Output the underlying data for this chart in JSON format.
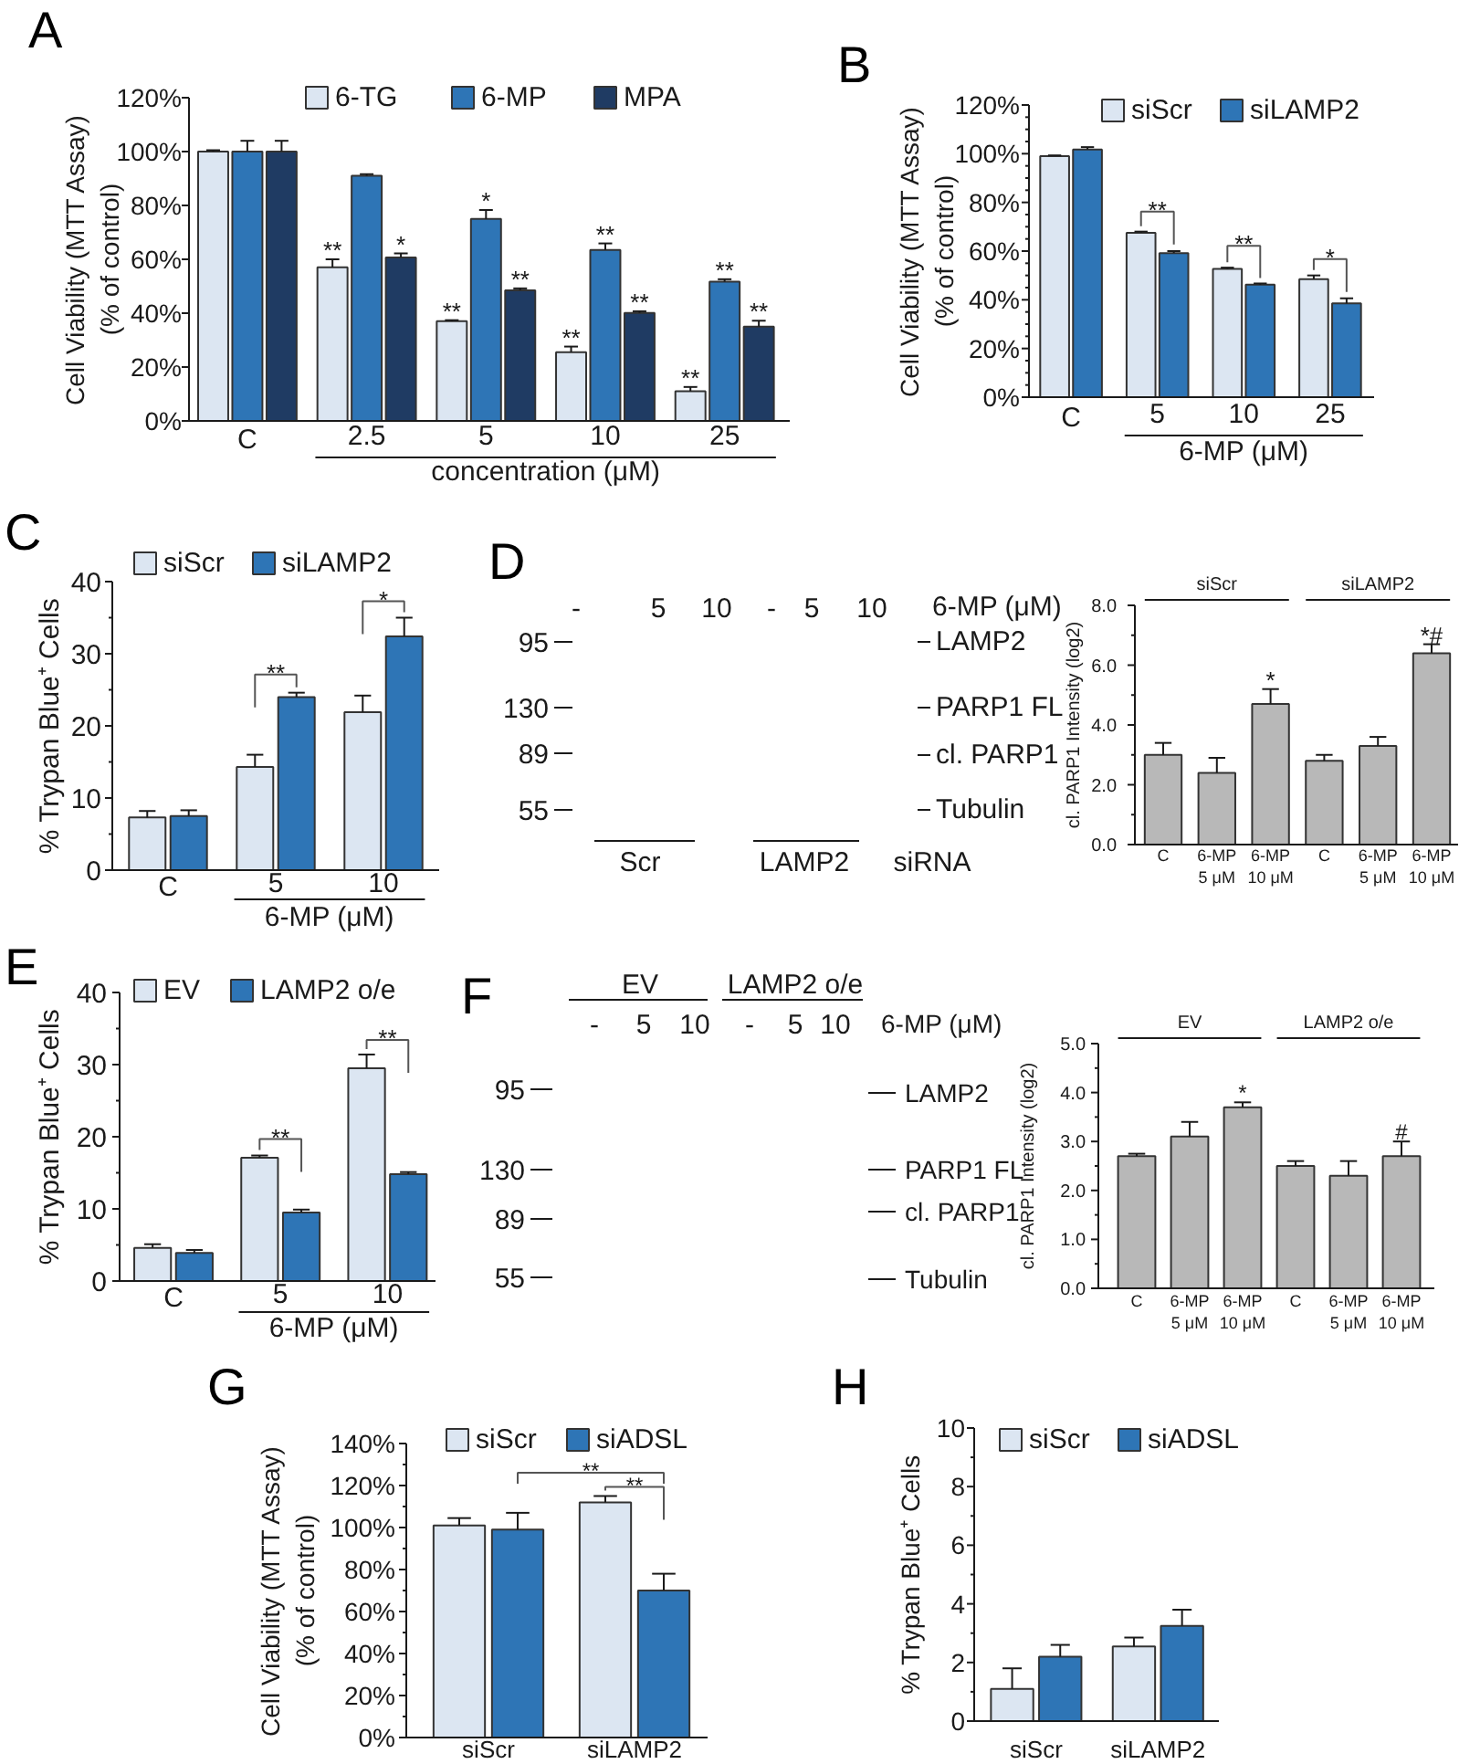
{
  "chart_data": [
    {
      "type": "bar",
      "title": "A",
      "ylabel": "Cell Viability (MTT Assay)\n(% of control)",
      "xlabel": "concentration (μM)",
      "categories": [
        "C",
        "2.5",
        "5",
        "10",
        "25"
      ],
      "series": [
        {
          "name": "6-TG",
          "color": "#dce6f2",
          "values": [
            100,
            57,
            37,
            25.5,
            11
          ],
          "errors": [
            [
              100,
              100.5
            ],
            [
              57,
              60
            ],
            [
              37,
              37.4
            ],
            [
              25.5,
              27.6
            ],
            [
              11,
              12.6
            ]
          ],
          "value_labels": [
            null,
            "**",
            "**",
            "**",
            "**"
          ]
        },
        {
          "name": "6-MP",
          "color": "#2e75b6",
          "values": [
            100,
            91,
            75,
            63.5,
            51.7
          ],
          "errors": [
            [
              100,
              104
            ],
            [
              91,
              91.6
            ],
            [
              75,
              78.3
            ],
            [
              63.5,
              65.9
            ],
            [
              51.7,
              52.6
            ]
          ],
          "value_labels": [
            null,
            null,
            "*",
            "**",
            "**"
          ]
        },
        {
          "name": "MPA",
          "color": "#1f3b63",
          "values": [
            100,
            60.7,
            48.5,
            40.1,
            35
          ],
          "errors": [
            [
              100,
              104
            ],
            [
              60.7,
              62.2
            ],
            [
              48.5,
              49.2
            ],
            [
              40.1,
              40.7
            ],
            [
              35,
              37.2
            ]
          ],
          "value_labels": [
            null,
            "*",
            "**",
            "**",
            "**"
          ]
        }
      ],
      "ylim": [
        0,
        120
      ],
      "yticks": [
        {
          "value": 0,
          "label": "0%"
        },
        {
          "value": 20,
          "label": "20%"
        },
        {
          "value": 40,
          "label": "40%"
        },
        {
          "value": 60,
          "label": "60%"
        },
        {
          "value": 80,
          "label": "80%"
        },
        {
          "value": 100,
          "label": "100%"
        },
        {
          "value": 120,
          "label": "120%"
        }
      ],
      "legend": "top"
    },
    {
      "type": "bar",
      "title": "B",
      "ylabel": "Cell Viability (MTT Assay)\n(% of control)",
      "xlabel": "6-MP (μM)",
      "categories": [
        "C",
        "5",
        "10",
        "25"
      ],
      "series": [
        {
          "name": "siScr",
          "color": "#dce6f2",
          "values": [
            99,
            67.5,
            52.7,
            48.5
          ],
          "errors": [
            [
              99,
              99.3
            ],
            [
              67.5,
              68
            ],
            [
              52.7,
              53.2
            ],
            [
              48.5,
              50
            ]
          ]
        },
        {
          "name": "siLAMP2",
          "color": "#2e75b6",
          "values": [
            101.7,
            59.2,
            46.2,
            38.5
          ],
          "errors": [
            [
              101.7,
              102.7
            ],
            [
              59.2,
              60
            ],
            [
              46.2,
              46.7
            ],
            [
              38.5,
              40.6
            ]
          ]
        }
      ],
      "annotations": [
        "**",
        "**",
        "*"
      ],
      "ylim": [
        0,
        120
      ],
      "yticks": [
        {
          "value": 0,
          "label": "0%"
        },
        {
          "value": 20,
          "label": "20%"
        },
        {
          "value": 40,
          "label": "40%"
        },
        {
          "value": 60,
          "label": "60%"
        },
        {
          "value": 80,
          "label": "80%"
        },
        {
          "value": 100,
          "label": "100%"
        },
        {
          "value": 120,
          "label": "120%"
        }
      ],
      "legend": "top right"
    },
    {
      "type": "bar",
      "title": "C",
      "ylabel": "% Trypan Blue⁺ Cells",
      "xlabel": "6-MP (μM)",
      "categories": [
        "C",
        "5",
        "10"
      ],
      "series": [
        {
          "name": "siScr",
          "color": "#dce6f2",
          "values": [
            7.3,
            14.3,
            21.9
          ],
          "errors": [
            [
              7.3,
              8.2
            ],
            [
              14.3,
              16
            ],
            [
              21.9,
              24.2
            ]
          ]
        },
        {
          "name": "siLAMP2",
          "color": "#2e75b6",
          "values": [
            7.5,
            24,
            32.4
          ],
          "errors": [
            [
              7.5,
              8.3
            ],
            [
              24,
              24.6
            ],
            [
              32.4,
              35
            ]
          ]
        }
      ],
      "annotations": [
        "**",
        "*"
      ],
      "ylim": [
        0,
        40
      ],
      "yticks": [
        0,
        10,
        20,
        30,
        40
      ],
      "legend": "top left"
    },
    {
      "type": "other",
      "title": "D",
      "annotations": [
        "-",
        "5",
        "10",
        "-",
        "5",
        "10",
        "6-MP (μM)",
        "95",
        "LAMP2",
        "130",
        "PARP1 FL",
        "89",
        "cl. PARP1",
        "55",
        "Tubulin",
        "Scr",
        "LAMP2",
        "siRNA"
      ]
    },
    {
      "type": "bar",
      "ylabel": "cl. PARP1 Intensity (log2)",
      "categories": [
        "C",
        "6-MP\n5 μM",
        "6-MP\n10 μM",
        "C",
        "6-MP\n5 μM",
        "6-MP\n10 μM"
      ],
      "values": [
        3.0,
        2.4,
        4.7,
        2.8,
        3.3,
        6.4
      ],
      "color": "#b8b8b8",
      "errors": [
        [
          3.0,
          3.4
        ],
        [
          2.4,
          2.9
        ],
        [
          4.7,
          5.2
        ],
        [
          2.8,
          3.0
        ],
        [
          3.3,
          3.6
        ],
        [
          6.4,
          6.7
        ]
      ],
      "value_labels": [
        null,
        null,
        "*",
        null,
        null,
        "*#"
      ],
      "annotations": [
        "siScr",
        "siLAMP2"
      ],
      "ylim": [
        0,
        8
      ],
      "yticks": [
        {
          "value": 0,
          "label": "0.0"
        },
        {
          "value": 2,
          "label": "2.0"
        },
        {
          "value": 4,
          "label": "4.0"
        },
        {
          "value": 6,
          "label": "6.0"
        },
        {
          "value": 8,
          "label": "8.0"
        }
      ]
    },
    {
      "type": "bar",
      "title": "E",
      "ylabel": "% Trypan Blue⁺ Cells",
      "xlabel": "6-MP (μM)",
      "categories": [
        "C",
        "5",
        "10"
      ],
      "series": [
        {
          "name": "EV",
          "color": "#dce6f2",
          "values": [
            4.6,
            17.1,
            29.5
          ],
          "errors": [
            [
              4.6,
              5.1
            ],
            [
              17.1,
              17.4
            ],
            [
              29.5,
              31.4
            ]
          ]
        },
        {
          "name": "LAMP2 o/e",
          "color": "#2e75b6",
          "values": [
            3.9,
            9.5,
            14.8
          ],
          "errors": [
            [
              3.9,
              4.3
            ],
            [
              9.5,
              9.9
            ],
            [
              14.8,
              15.1
            ]
          ]
        }
      ],
      "annotations": [
        "**",
        "**"
      ],
      "ylim": [
        0,
        40
      ],
      "yticks": [
        0,
        10,
        20,
        30,
        40
      ],
      "legend": "top left"
    },
    {
      "type": "other",
      "title": "F",
      "annotations": [
        "EV",
        "LAMP2 o/e",
        "-",
        "5",
        "10",
        "-",
        "5",
        "10",
        "6-MP (μM)",
        "95",
        "LAMP2",
        "130",
        "PARP1 FL",
        "89",
        "cl. PARP1",
        "55",
        "Tubulin"
      ]
    },
    {
      "type": "bar",
      "ylabel": "cl. PARP1 Intensity (log2)",
      "categories": [
        "C",
        "6-MP\n5 μM",
        "6-MP\n10 μM",
        "C",
        "6-MP\n5 μM",
        "6-MP\n10 μM"
      ],
      "values": [
        2.7,
        3.1,
        3.7,
        2.5,
        2.3,
        2.7
      ],
      "color": "#b8b8b8",
      "errors": [
        [
          2.7,
          2.75
        ],
        [
          3.1,
          3.4
        ],
        [
          3.7,
          3.8
        ],
        [
          2.5,
          2.6
        ],
        [
          2.3,
          2.6
        ],
        [
          2.7,
          3.0
        ]
      ],
      "value_labels": [
        null,
        null,
        "*",
        null,
        null,
        "#"
      ],
      "annotations": [
        "EV",
        "LAMP2 o/e"
      ],
      "ylim": [
        0,
        5
      ],
      "yticks": [
        {
          "value": 0,
          "label": "0.0"
        },
        {
          "value": 1,
          "label": "1.0"
        },
        {
          "value": 2,
          "label": "2.0"
        },
        {
          "value": 3,
          "label": "3.0"
        },
        {
          "value": 4,
          "label": "4.0"
        },
        {
          "value": 5,
          "label": "5.0"
        }
      ]
    },
    {
      "type": "bar",
      "title": "G",
      "ylabel": "Cell Viability (MTT Assay)\n(% of control)",
      "categories": [
        "siScr",
        "siLAMP2"
      ],
      "series": [
        {
          "name": "siScr",
          "color": "#dce6f2",
          "values": [
            101,
            112
          ],
          "errors": [
            [
              101,
              104.5
            ],
            [
              112,
              115
            ]
          ]
        },
        {
          "name": "siADSL",
          "color": "#2e75b6",
          "values": [
            99,
            70
          ],
          "errors": [
            [
              99,
              107
            ],
            [
              70,
              78
            ]
          ]
        }
      ],
      "annotations": [
        "**",
        "**"
      ],
      "ylim": [
        0,
        140
      ],
      "yticks": [
        {
          "value": 0,
          "label": "0%"
        },
        {
          "value": 20,
          "label": "20%"
        },
        {
          "value": 40,
          "label": "40%"
        },
        {
          "value": 60,
          "label": "60%"
        },
        {
          "value": 80,
          "label": "80%"
        },
        {
          "value": 100,
          "label": "100%"
        },
        {
          "value": 120,
          "label": "120%"
        },
        {
          "value": 140,
          "label": "140%"
        }
      ],
      "legend": "top"
    },
    {
      "type": "bar",
      "title": "H",
      "ylabel": "% Trypan Blue⁺ Cells",
      "categories": [
        "siScr",
        "siLAMP2"
      ],
      "series": [
        {
          "name": "siScr",
          "color": "#dce6f2",
          "values": [
            1.1,
            2.55
          ],
          "errors": [
            [
              1.1,
              1.8
            ],
            [
              2.55,
              2.85
            ]
          ]
        },
        {
          "name": "siADSL",
          "color": "#2e75b6",
          "values": [
            2.2,
            3.25
          ],
          "errors": [
            [
              2.2,
              2.6
            ],
            [
              3.25,
              3.8
            ]
          ]
        }
      ],
      "ylim": [
        0,
        10
      ],
      "yticks": [
        0,
        2,
        4,
        6,
        8,
        10
      ],
      "legend": "top"
    }
  ]
}
